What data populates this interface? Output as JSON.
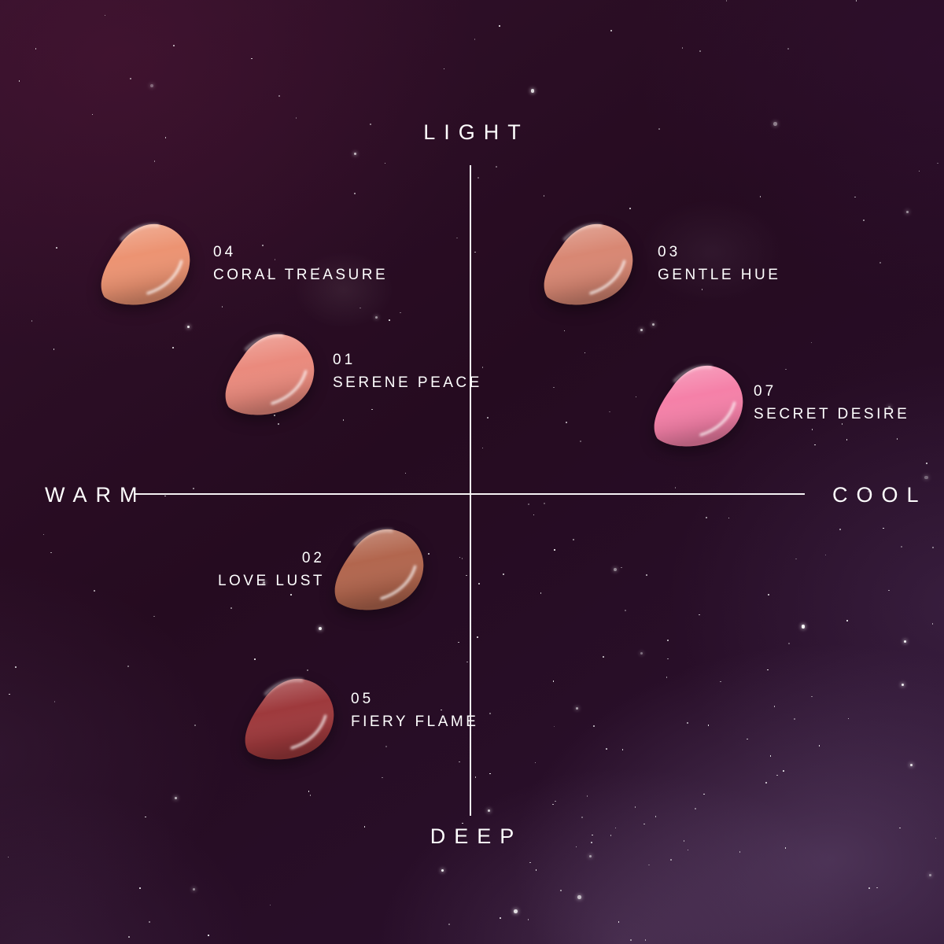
{
  "diagram": {
    "type": "quadrant-map",
    "axis_labels": {
      "top": "LIGHT",
      "bottom": "DEEP",
      "left": "WARM",
      "right": "COOL"
    },
    "axis_color": "#ffffff",
    "text_color": "#ffffff"
  },
  "shades": [
    {
      "number": "04",
      "name": "CORAL TREASURE",
      "color": "#ec9372",
      "quadrant": "warm-light"
    },
    {
      "number": "01",
      "name": "SERENE PEACE",
      "color": "#ea8a7d",
      "quadrant": "warm-light"
    },
    {
      "number": "03",
      "name": "GENTLE HUE",
      "color": "#d88773",
      "quadrant": "cool-light"
    },
    {
      "number": "07",
      "name": "SECRET DESIRE",
      "color": "#f580a8",
      "quadrant": "cool-light"
    },
    {
      "number": "02",
      "name": "LOVE LUST",
      "color": "#b2664e",
      "quadrant": "warm-deep"
    },
    {
      "number": "05",
      "name": "FIERY FLAME",
      "color": "#9e393c",
      "quadrant": "warm-deep"
    }
  ],
  "background": {
    "style": "galaxy-nebula",
    "base_colors": [
      "#250b20",
      "#33112b",
      "#2b1130",
      "#80689480"
    ],
    "star_color": "#ffffff"
  }
}
